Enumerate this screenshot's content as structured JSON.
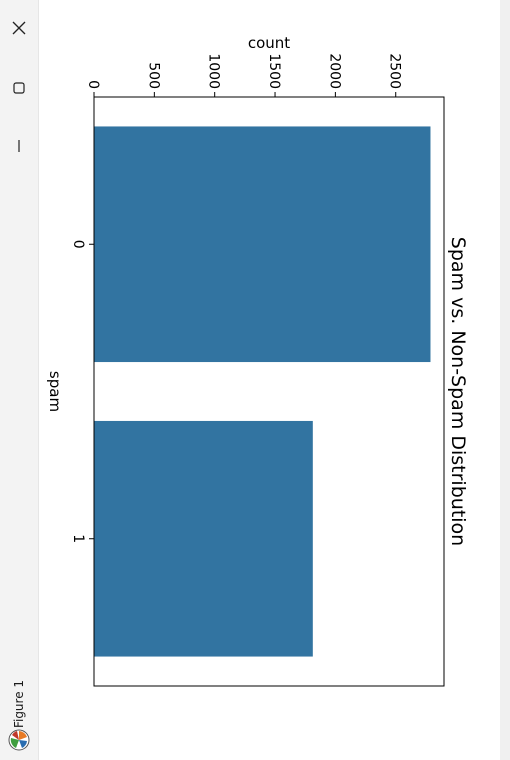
{
  "window": {
    "title": "Figure 1",
    "controls": [
      "close-icon",
      "maximize-icon",
      "minimize-icon"
    ]
  },
  "chart_data": {
    "type": "bar",
    "orientation": "vertical, figure rotated 90° clockwise",
    "title": "Spam vs. Non-Spam Distribution",
    "xlabel": "spam",
    "ylabel": "count",
    "categories": [
      "0",
      "1"
    ],
    "values": [
      2788,
      1813
    ],
    "ylim": [
      0,
      2900
    ],
    "yticks": [
      0,
      500,
      1000,
      1500,
      2000,
      2500
    ],
    "bar_color": "#3274a1",
    "grid": false,
    "legend": "none"
  }
}
